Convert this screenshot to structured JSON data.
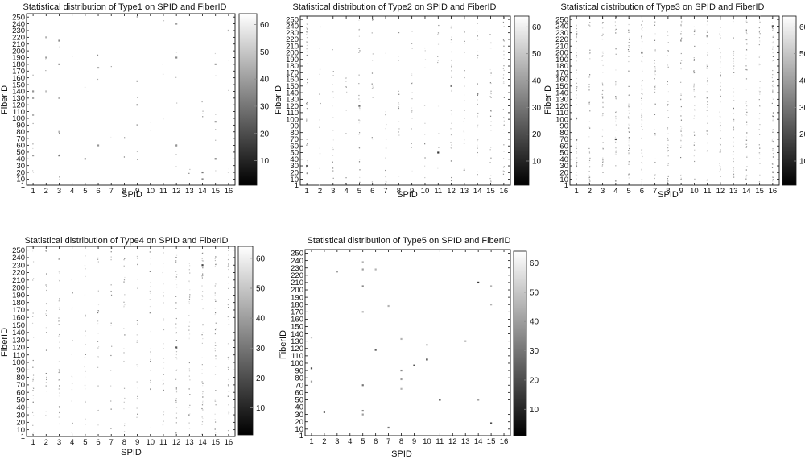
{
  "figure": {
    "colormap": "gray",
    "colormap_stops": [
      "#000000",
      "#ffffff"
    ]
  },
  "chart_data": [
    {
      "type": "scatter",
      "title": "Statistical distribution of Type1 on SPID and FiberID",
      "xlabel": "SPID",
      "ylabel": "FiberID",
      "xlim": [
        0.5,
        16.5
      ],
      "ylim": [
        1,
        255
      ],
      "xticks": [
        1,
        2,
        3,
        4,
        5,
        6,
        7,
        8,
        9,
        10,
        11,
        12,
        13,
        14,
        15,
        16
      ],
      "yticks": [
        1,
        10,
        20,
        30,
        40,
        50,
        60,
        70,
        80,
        90,
        100,
        110,
        120,
        130,
        140,
        150,
        160,
        170,
        180,
        190,
        200,
        210,
        220,
        230,
        240,
        250
      ],
      "colorbar": {
        "min": 1,
        "max": 64,
        "ticks": [
          10,
          20,
          30,
          40,
          50,
          60
        ]
      },
      "density_profile": [
        0.05,
        0.02,
        0.05,
        0.01,
        0.015,
        0.02,
        0.015,
        0.02,
        0.03,
        0.015,
        0.03,
        0.06,
        0.015,
        0.03,
        0.05,
        0.03
      ],
      "seed": 11,
      "points": [
        {
          "x": 1,
          "y": 140,
          "c": 38
        },
        {
          "x": 1,
          "y": 130,
          "c": 42
        },
        {
          "x": 1,
          "y": 105,
          "c": 45
        },
        {
          "x": 1,
          "y": 45,
          "c": 40
        },
        {
          "x": 2,
          "y": 190,
          "c": 40
        },
        {
          "x": 2,
          "y": 220,
          "c": 45
        },
        {
          "x": 2,
          "y": 140,
          "c": 48
        },
        {
          "x": 3,
          "y": 215,
          "c": 35
        },
        {
          "x": 3,
          "y": 180,
          "c": 40
        },
        {
          "x": 3,
          "y": 130,
          "c": 45
        },
        {
          "x": 3,
          "y": 45,
          "c": 30
        },
        {
          "x": 3,
          "y": 80,
          "c": 45
        },
        {
          "x": 5,
          "y": 40,
          "c": 40
        },
        {
          "x": 6,
          "y": 60,
          "c": 38
        },
        {
          "x": 6,
          "y": 175,
          "c": 45
        },
        {
          "x": 9,
          "y": 155,
          "c": 45
        },
        {
          "x": 9,
          "y": 120,
          "c": 42
        },
        {
          "x": 9,
          "y": 90,
          "c": 45
        },
        {
          "x": 12,
          "y": 240,
          "c": 40
        },
        {
          "x": 12,
          "y": 190,
          "c": 35
        },
        {
          "x": 12,
          "y": 60,
          "c": 38
        },
        {
          "x": 14,
          "y": 20,
          "c": 30
        },
        {
          "x": 14,
          "y": 10,
          "c": 35
        },
        {
          "x": 15,
          "y": 95,
          "c": 40
        },
        {
          "x": 15,
          "y": 40,
          "c": 32
        },
        {
          "x": 15,
          "y": 180,
          "c": 42
        },
        {
          "x": 16,
          "y": 230,
          "c": 45
        }
      ]
    },
    {
      "type": "scatter",
      "title": "Statistical distribution of Type2 on SPID and FiberID",
      "xlabel": "SPID",
      "ylabel": "FiberID",
      "xlim": [
        0.5,
        16.5
      ],
      "ylim": [
        1,
        255
      ],
      "xticks": [
        1,
        2,
        3,
        4,
        5,
        6,
        7,
        8,
        9,
        10,
        11,
        12,
        13,
        14,
        15,
        16
      ],
      "yticks": [
        1,
        10,
        20,
        30,
        40,
        50,
        60,
        70,
        80,
        90,
        100,
        110,
        120,
        130,
        140,
        150,
        160,
        170,
        180,
        190,
        200,
        210,
        220,
        230,
        240,
        250
      ],
      "colorbar": {
        "min": 1,
        "max": 64,
        "ticks": [
          10,
          20,
          30,
          40,
          50,
          60
        ]
      },
      "density_profile": [
        0.3,
        0.1,
        0.15,
        0.08,
        0.25,
        0.12,
        0.1,
        0.12,
        0.15,
        0.1,
        0.1,
        0.3,
        0.2,
        0.3,
        0.25,
        0.3
      ],
      "seed": 22,
      "points": [
        {
          "x": 11,
          "y": 50,
          "c": 15
        },
        {
          "x": 1,
          "y": 30,
          "c": 25
        },
        {
          "x": 5,
          "y": 120,
          "c": 28
        },
        {
          "x": 12,
          "y": 150,
          "c": 30
        }
      ]
    },
    {
      "type": "scatter",
      "title": "Statistical distribution of Type3 on SPID and FiberID",
      "xlabel": "SPID",
      "ylabel": "FiberID",
      "xlim": [
        0.5,
        16.5
      ],
      "ylim": [
        1,
        255
      ],
      "xticks": [
        1,
        2,
        3,
        4,
        5,
        6,
        7,
        8,
        9,
        10,
        11,
        12,
        13,
        14,
        15,
        16
      ],
      "yticks": [
        1,
        10,
        20,
        30,
        40,
        50,
        60,
        70,
        80,
        90,
        100,
        110,
        120,
        130,
        140,
        150,
        160,
        170,
        180,
        190,
        200,
        210,
        220,
        230,
        240,
        250
      ],
      "colorbar": {
        "min": 1,
        "max": 64,
        "ticks": [
          10,
          20,
          30,
          40,
          50,
          60
        ]
      },
      "density_profile": [
        0.5,
        0.35,
        0.4,
        0.3,
        0.45,
        0.5,
        0.3,
        0.35,
        0.4,
        0.3,
        0.35,
        0.45,
        0.4,
        0.4,
        0.35,
        0.5
      ],
      "seed": 33,
      "points": [
        {
          "x": 4,
          "y": 70,
          "c": 20
        },
        {
          "x": 6,
          "y": 200,
          "c": 25
        },
        {
          "x": 16,
          "y": 240,
          "c": 22
        }
      ]
    },
    {
      "type": "scatter",
      "title": "Statistical distribution of Type4 on SPID and FiberID",
      "xlabel": "SPID",
      "ylabel": "FiberID",
      "xlim": [
        0.5,
        16.5
      ],
      "ylim": [
        1,
        255
      ],
      "xticks": [
        1,
        2,
        3,
        4,
        5,
        6,
        7,
        8,
        9,
        10,
        11,
        12,
        13,
        14,
        15,
        16
      ],
      "yticks": [
        1,
        10,
        20,
        30,
        40,
        50,
        60,
        70,
        80,
        90,
        100,
        110,
        120,
        130,
        140,
        150,
        160,
        170,
        180,
        190,
        200,
        210,
        220,
        230,
        240,
        250
      ],
      "colorbar": {
        "min": 1,
        "max": 64,
        "ticks": [
          10,
          20,
          30,
          40,
          50,
          60
        ]
      },
      "density_profile": [
        0.25,
        0.2,
        0.3,
        0.12,
        0.2,
        0.2,
        0.15,
        0.2,
        0.2,
        0.2,
        0.25,
        0.35,
        0.3,
        0.45,
        0.35,
        0.35
      ],
      "seed": 44,
      "points": [
        {
          "x": 14,
          "y": 230,
          "c": 18
        },
        {
          "x": 12,
          "y": 120,
          "c": 22
        }
      ]
    },
    {
      "type": "scatter",
      "title": "Statistical distribution of Type5 on SPID and FiberID",
      "xlabel": "SPID",
      "ylabel": "FiberID",
      "xlim": [
        0.5,
        16.5
      ],
      "ylim": [
        1,
        255
      ],
      "xticks": [
        1,
        2,
        3,
        4,
        5,
        6,
        7,
        8,
        9,
        10,
        11,
        12,
        13,
        14,
        15,
        16
      ],
      "yticks": [
        1,
        10,
        20,
        30,
        40,
        50,
        60,
        70,
        80,
        90,
        100,
        110,
        120,
        130,
        140,
        150,
        160,
        170,
        180,
        190,
        200,
        210,
        220,
        230,
        240,
        250
      ],
      "colorbar": {
        "min": 1,
        "max": 64,
        "ticks": [
          10,
          20,
          30,
          40,
          50,
          60
        ]
      },
      "density_profile": [
        0,
        0,
        0,
        0,
        0,
        0,
        0,
        0,
        0,
        0,
        0,
        0,
        0,
        0,
        0,
        0
      ],
      "seed": 55,
      "points": [
        {
          "x": 1,
          "y": 93,
          "c": 20
        },
        {
          "x": 1,
          "y": 75,
          "c": 40
        },
        {
          "x": 1,
          "y": 135,
          "c": 50
        },
        {
          "x": 2,
          "y": 33,
          "c": 30
        },
        {
          "x": 3,
          "y": 225,
          "c": 40
        },
        {
          "x": 5,
          "y": 238,
          "c": 45
        },
        {
          "x": 5,
          "y": 228,
          "c": 40
        },
        {
          "x": 5,
          "y": 205,
          "c": 35
        },
        {
          "x": 5,
          "y": 170,
          "c": 45
        },
        {
          "x": 5,
          "y": 70,
          "c": 30
        },
        {
          "x": 5,
          "y": 35,
          "c": 35
        },
        {
          "x": 5,
          "y": 30,
          "c": 40
        },
        {
          "x": 6,
          "y": 228,
          "c": 45
        },
        {
          "x": 6,
          "y": 118,
          "c": 25
        },
        {
          "x": 7,
          "y": 178,
          "c": 45
        },
        {
          "x": 7,
          "y": 12,
          "c": 30
        },
        {
          "x": 8,
          "y": 133,
          "c": 45
        },
        {
          "x": 8,
          "y": 90,
          "c": 35
        },
        {
          "x": 8,
          "y": 78,
          "c": 40
        },
        {
          "x": 8,
          "y": 65,
          "c": 45
        },
        {
          "x": 9,
          "y": 97,
          "c": 20
        },
        {
          "x": 10,
          "y": 105,
          "c": 10
        },
        {
          "x": 10,
          "y": 125,
          "c": 45
        },
        {
          "x": 11,
          "y": 50,
          "c": 15
        },
        {
          "x": 13,
          "y": 130,
          "c": 45
        },
        {
          "x": 14,
          "y": 210,
          "c": 15
        },
        {
          "x": 14,
          "y": 50,
          "c": 40
        },
        {
          "x": 15,
          "y": 18,
          "c": 20
        },
        {
          "x": 15,
          "y": 180,
          "c": 45
        },
        {
          "x": 15,
          "y": 205,
          "c": 45
        }
      ]
    }
  ]
}
